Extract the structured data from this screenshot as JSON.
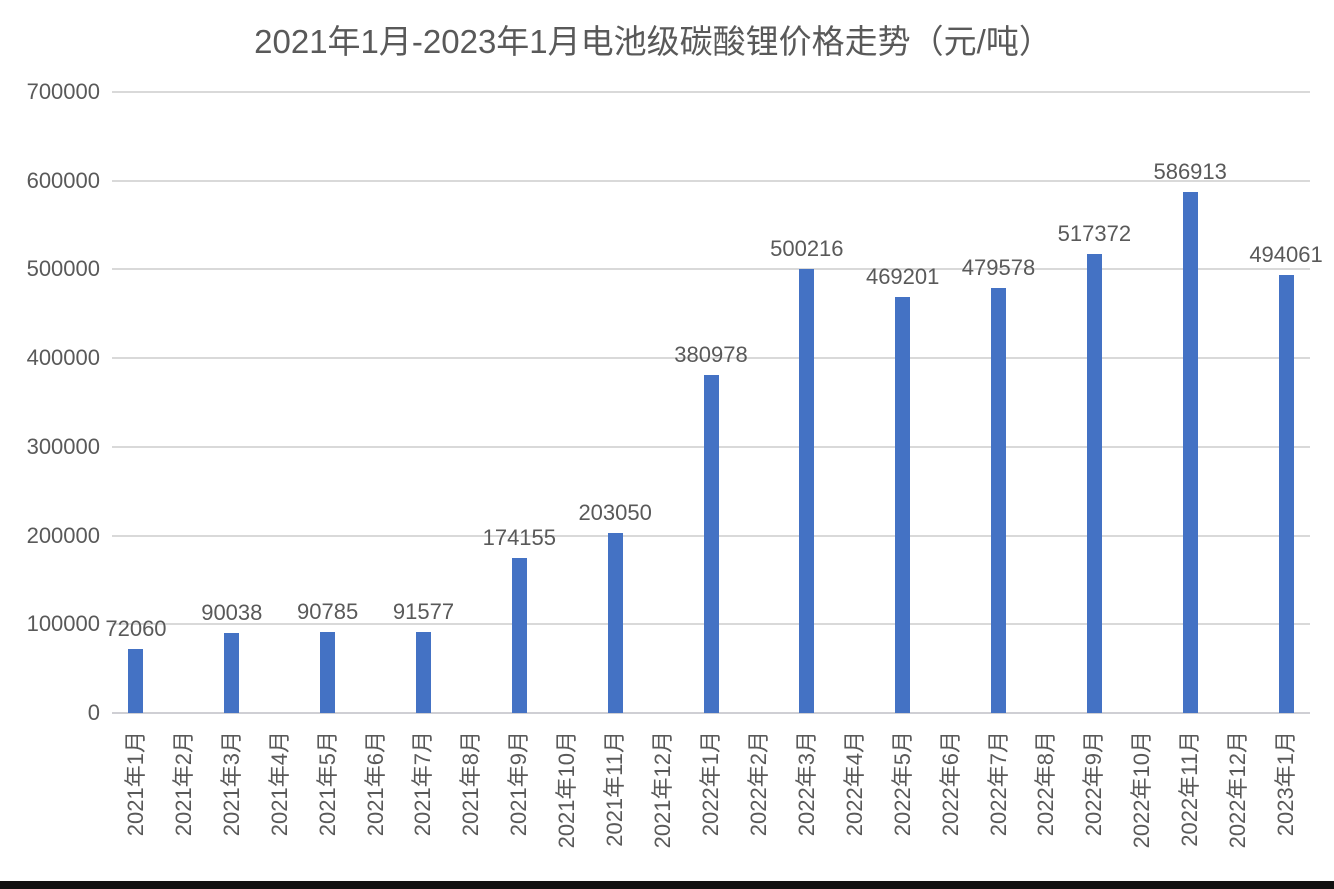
{
  "chart_data": {
    "type": "bar",
    "title": "2021年1月-2023年1月电池级碳酸锂价格走势（元/吨）",
    "xlabel": "",
    "ylabel": "",
    "categories": [
      "2021年1月",
      "2021年2月",
      "2021年3月",
      "2021年4月",
      "2021年5月",
      "2021年6月",
      "2021年7月",
      "2021年8月",
      "2021年9月",
      "2021年10月",
      "2021年11月",
      "2021年12月",
      "2022年1月",
      "2022年2月",
      "2022年3月",
      "2022年4月",
      "2022年5月",
      "2022年6月",
      "2022年7月",
      "2022年8月",
      "2022年9月",
      "2022年10月",
      "2022年11月",
      "2022年12月",
      "2023年1月"
    ],
    "values": [
      72060,
      null,
      90038,
      null,
      90785,
      null,
      91577,
      null,
      174155,
      null,
      203050,
      null,
      380978,
      null,
      500216,
      null,
      469201,
      null,
      479578,
      null,
      517372,
      null,
      586913,
      null,
      494061
    ],
    "ylim": [
      0,
      700000
    ],
    "yticks": [
      0,
      100000,
      200000,
      300000,
      400000,
      500000,
      600000,
      700000
    ],
    "grid": true,
    "legend_position": "none",
    "data_labels_visible": true,
    "x_labels_rotation_degrees": 90,
    "colors": {
      "bar": "#4472C4",
      "text": "#595959",
      "gridline": "#D9D9D9",
      "axis_line": "#CFCFD4",
      "background": "#FFFFFF",
      "bottom_strip": "#111111"
    }
  }
}
